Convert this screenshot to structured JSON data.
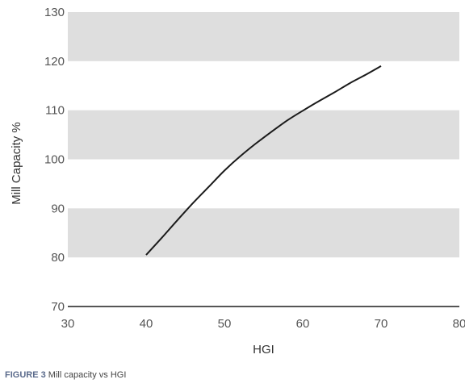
{
  "chart_data": {
    "type": "line",
    "title": "",
    "xlabel": "HGI",
    "ylabel": "Mill Capacity %",
    "xlim": [
      30,
      80
    ],
    "ylim": [
      70,
      130
    ],
    "xticks": [
      30,
      40,
      50,
      60,
      70,
      80
    ],
    "yticks": [
      70,
      80,
      90,
      100,
      110,
      120,
      130
    ],
    "band_color": "#dedede",
    "line_color": "#1a1a1a",
    "series": [
      {
        "x": [
          40,
          42,
          44,
          46,
          48,
          50,
          52,
          54,
          56,
          58,
          60,
          62,
          64,
          66,
          68,
          70
        ],
        "values": [
          80.5,
          84,
          87.6,
          91.1,
          94.4,
          97.7,
          100.6,
          103.2,
          105.6,
          107.9,
          109.9,
          111.8,
          113.6,
          115.5,
          117.2,
          119
        ]
      }
    ]
  },
  "caption": {
    "figure_label": "FIGURE 3",
    "text": "Mill capacity vs HGI"
  }
}
